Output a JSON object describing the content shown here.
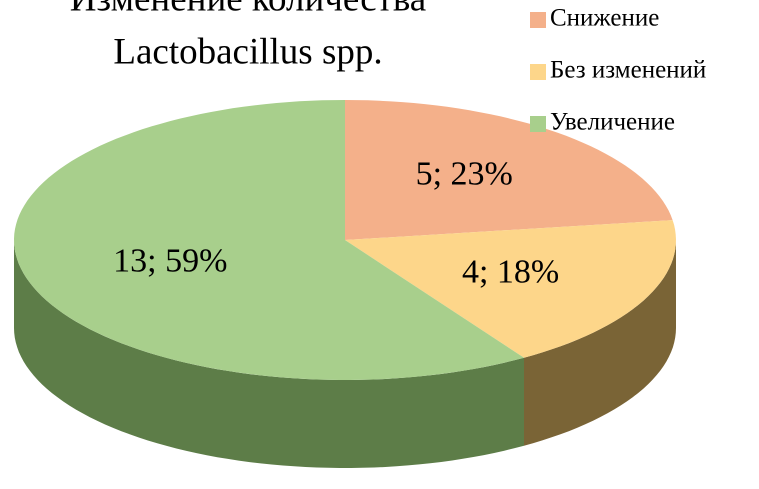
{
  "chart_data": {
    "type": "pie",
    "title": [
      "Изменение количества",
      "Lactobacillus spp."
    ],
    "categories": [
      "Снижение",
      "Без изменений",
      "Увеличение"
    ],
    "values": [
      5,
      4,
      13
    ],
    "value_labels": [
      "5; 23%",
      "4; 18%",
      "13; 59%"
    ],
    "colors": [
      "#f4b08a",
      "#fdd68a",
      "#a8cf8c"
    ],
    "side_colors": [
      "#8a5a3e",
      "#7a6436",
      "#5d7d48"
    ],
    "legend": "top-right"
  }
}
